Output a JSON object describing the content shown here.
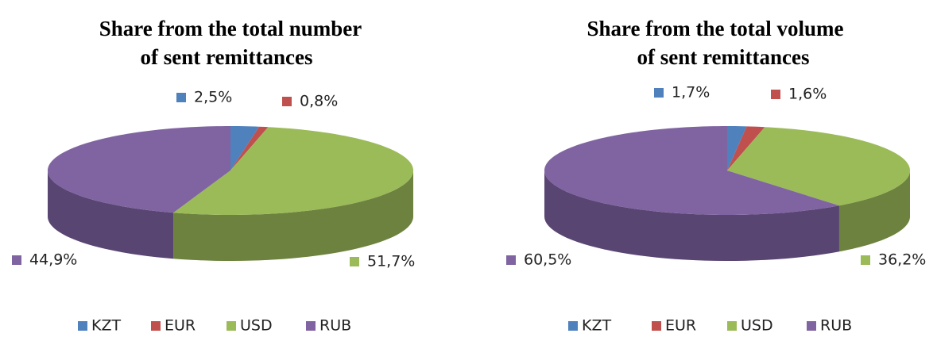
{
  "chart_data": [
    {
      "type": "pie",
      "title": [
        "Share from the total number",
        "of sent remittances"
      ],
      "categories": [
        "KZT",
        "EUR",
        "USD",
        "RUB"
      ],
      "values": [
        2.5,
        0.8,
        51.7,
        44.9
      ],
      "value_labels": [
        "2,5%",
        "0,8%",
        "51,7%",
        "44,9%"
      ],
      "colors": [
        "#4f81bd",
        "#c0504d",
        "#9bbb59",
        "#8064a2"
      ],
      "legend": "bottom"
    },
    {
      "type": "pie",
      "title": [
        "Share from the total volume",
        "of sent remittances"
      ],
      "categories": [
        "KZT",
        "EUR",
        "USD",
        "RUB"
      ],
      "values": [
        1.7,
        1.6,
        36.2,
        60.5
      ],
      "value_labels": [
        "1,7%",
        "1,6%",
        "36,2%",
        "60,5%"
      ],
      "colors": [
        "#4f81bd",
        "#c0504d",
        "#9bbb59",
        "#8064a2"
      ],
      "legend": "bottom"
    }
  ]
}
